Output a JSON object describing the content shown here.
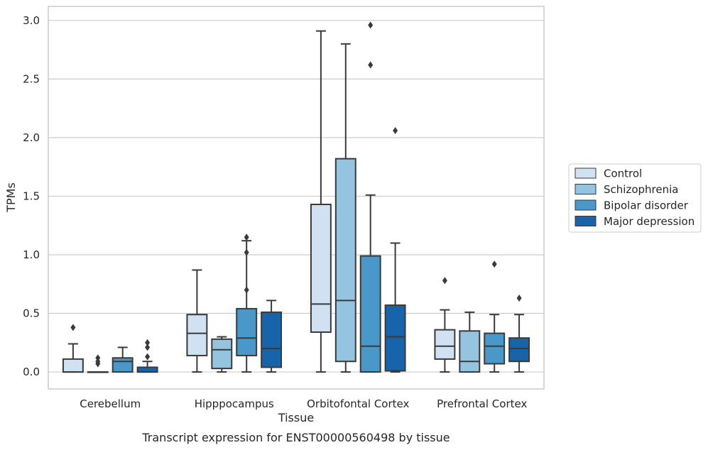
{
  "chart_data": {
    "type": "box",
    "title": "",
    "caption": "Transcript expression for ENST00000560498 by tissue",
    "xlabel": "Tissue",
    "ylabel": "TPMs",
    "ylim": [
      -0.145,
      3.12
    ],
    "yticks": [
      0.0,
      0.5,
      1.0,
      1.5,
      2.0,
      2.5,
      3.0
    ],
    "ytick_labels": [
      "0.0",
      "0.5",
      "1.0",
      "1.5",
      "2.0",
      "2.5",
      "3.0"
    ],
    "grid": "horizontal",
    "legend_position": "right",
    "categories": [
      "Cerebellum",
      "Hipppocampus",
      "Orbitofontal Cortex",
      "Prefrontal Cortex"
    ],
    "series": [
      {
        "name": "Control",
        "color": "#d0e1f2",
        "boxes": [
          {
            "whislo": 0.0,
            "q1": 0.0,
            "med": 0.0,
            "q3": 0.11,
            "whishi": 0.24,
            "fliers": [
              0.38
            ]
          },
          {
            "whislo": 0.0,
            "q1": 0.14,
            "med": 0.33,
            "q3": 0.49,
            "whishi": 0.87,
            "fliers": []
          },
          {
            "whislo": 0.0,
            "q1": 0.34,
            "med": 0.58,
            "q3": 1.43,
            "whishi": 2.91,
            "fliers": []
          },
          {
            "whislo": 0.0,
            "q1": 0.11,
            "med": 0.22,
            "q3": 0.36,
            "whishi": 0.53,
            "fliers": [
              0.78
            ]
          }
        ]
      },
      {
        "name": "Schizophrenia",
        "color": "#94c4df",
        "boxes": [
          {
            "whislo": 0.0,
            "q1": 0.0,
            "med": 0.0,
            "q3": 0.0,
            "whishi": 0.0,
            "fliers": [
              0.07,
              0.09,
              0.12
            ]
          },
          {
            "whislo": 0.0,
            "q1": 0.03,
            "med": 0.19,
            "q3": 0.28,
            "whishi": 0.3,
            "fliers": []
          },
          {
            "whislo": 0.0,
            "q1": 0.09,
            "med": 0.61,
            "q3": 1.82,
            "whishi": 2.8,
            "fliers": []
          },
          {
            "whislo": 0.0,
            "q1": 0.0,
            "med": 0.09,
            "q3": 0.35,
            "whishi": 0.51,
            "fliers": []
          }
        ]
      },
      {
        "name": "Bipolar disorder",
        "color": "#4a98c9",
        "boxes": [
          {
            "whislo": 0.0,
            "q1": 0.0,
            "med": 0.09,
            "q3": 0.12,
            "whishi": 0.21,
            "fliers": []
          },
          {
            "whislo": 0.0,
            "q1": 0.14,
            "med": 0.29,
            "q3": 0.54,
            "whishi": 1.12,
            "fliers": [
              0.7,
              1.02,
              1.15
            ]
          },
          {
            "whislo": 0.0,
            "q1": 0.0,
            "med": 0.22,
            "q3": 0.99,
            "whishi": 1.51,
            "fliers": [
              2.62,
              2.96
            ]
          },
          {
            "whislo": 0.0,
            "q1": 0.07,
            "med": 0.22,
            "q3": 0.33,
            "whishi": 0.49,
            "fliers": [
              0.92
            ]
          }
        ]
      },
      {
        "name": "Major depression",
        "color": "#1764ab",
        "boxes": [
          {
            "whislo": 0.0,
            "q1": 0.0,
            "med": 0.0,
            "q3": 0.04,
            "whishi": 0.09,
            "fliers": [
              0.13,
              0.21,
              0.25
            ]
          },
          {
            "whislo": 0.0,
            "q1": 0.04,
            "med": 0.2,
            "q3": 0.51,
            "whishi": 0.61,
            "fliers": []
          },
          {
            "whislo": 0.0,
            "q1": 0.01,
            "med": 0.3,
            "q3": 0.57,
            "whishi": 1.1,
            "fliers": [
              2.06
            ]
          },
          {
            "whislo": 0.0,
            "q1": 0.09,
            "med": 0.2,
            "q3": 0.29,
            "whishi": 0.49,
            "fliers": [
              0.63
            ]
          }
        ]
      }
    ]
  }
}
